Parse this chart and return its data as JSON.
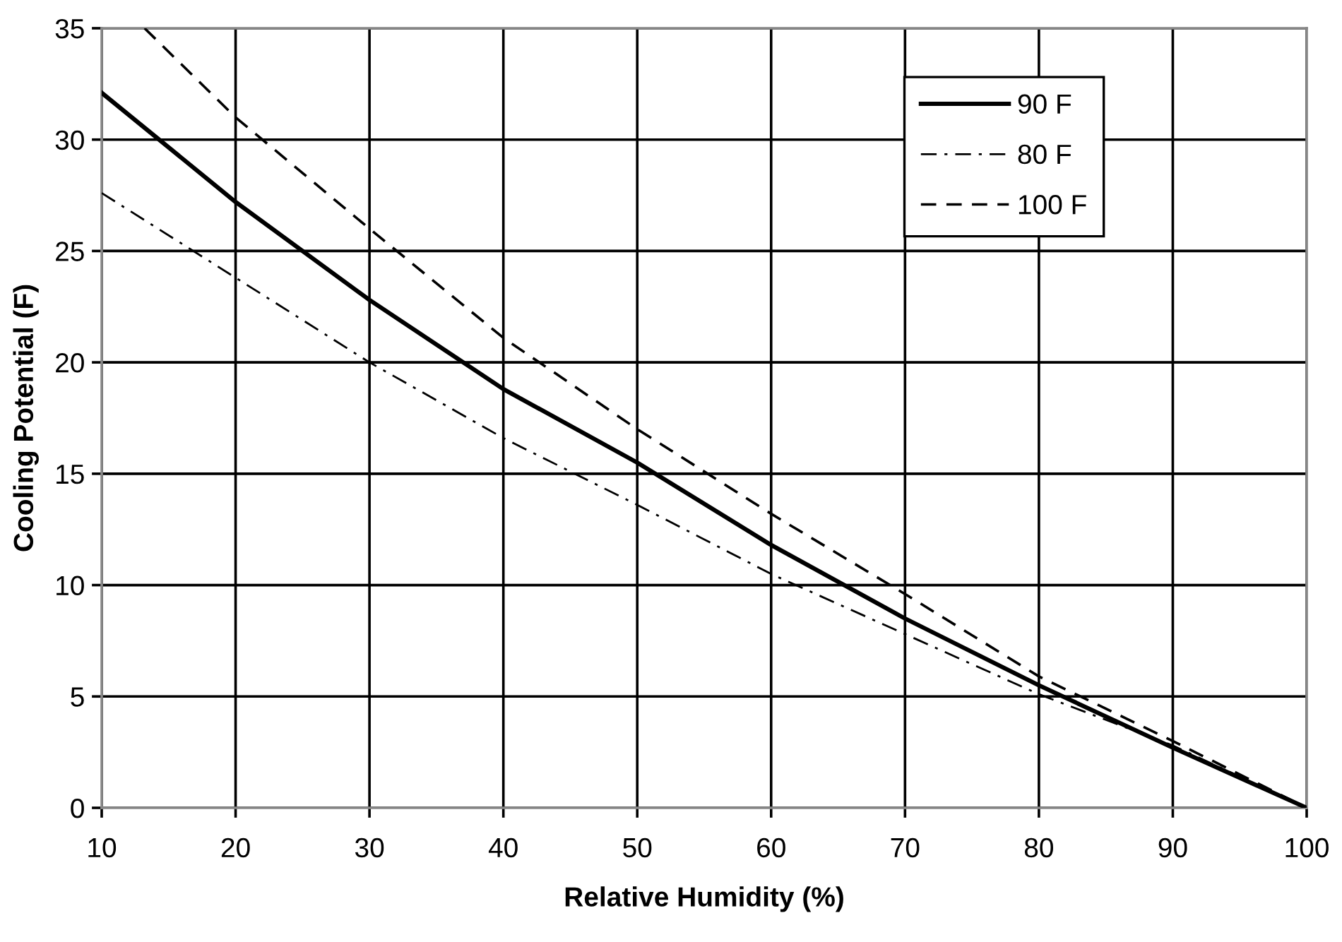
{
  "chart_data": {
    "type": "line",
    "xlabel": "Relative Humidity (%)",
    "ylabel": "Cooling Potential (F)",
    "x": [
      10,
      20,
      30,
      40,
      50,
      60,
      70,
      80,
      90,
      100
    ],
    "series": [
      {
        "name": "90 F",
        "color": "#000000",
        "line_style": "solid",
        "values": [
          32.1,
          27.2,
          22.8,
          18.8,
          15.5,
          11.8,
          8.5,
          5.5,
          2.7,
          0
        ]
      },
      {
        "name": "80 F",
        "color": "#000000",
        "line_style": "dashdot",
        "values": [
          27.6,
          23.8,
          20.0,
          16.6,
          13.6,
          10.5,
          7.8,
          5.1,
          2.8,
          0
        ]
      },
      {
        "name": "100 F",
        "color": "#000000",
        "line_style": "dashed",
        "x": [
          13.2,
          20,
          30,
          40,
          50,
          60,
          70,
          80,
          90,
          100
        ],
        "values": [
          35,
          31.0,
          26.0,
          21.1,
          17.0,
          13.2,
          9.6,
          5.9,
          3.0,
          0
        ]
      }
    ],
    "xlim": [
      10,
      100
    ],
    "xticks": [
      10,
      20,
      30,
      40,
      50,
      60,
      70,
      80,
      90,
      100
    ],
    "ylim": [
      0,
      35
    ],
    "yticks": [
      0,
      5,
      10,
      15,
      20,
      25,
      30,
      35
    ],
    "grid": true,
    "legend": "top right",
    "marker": "none"
  }
}
